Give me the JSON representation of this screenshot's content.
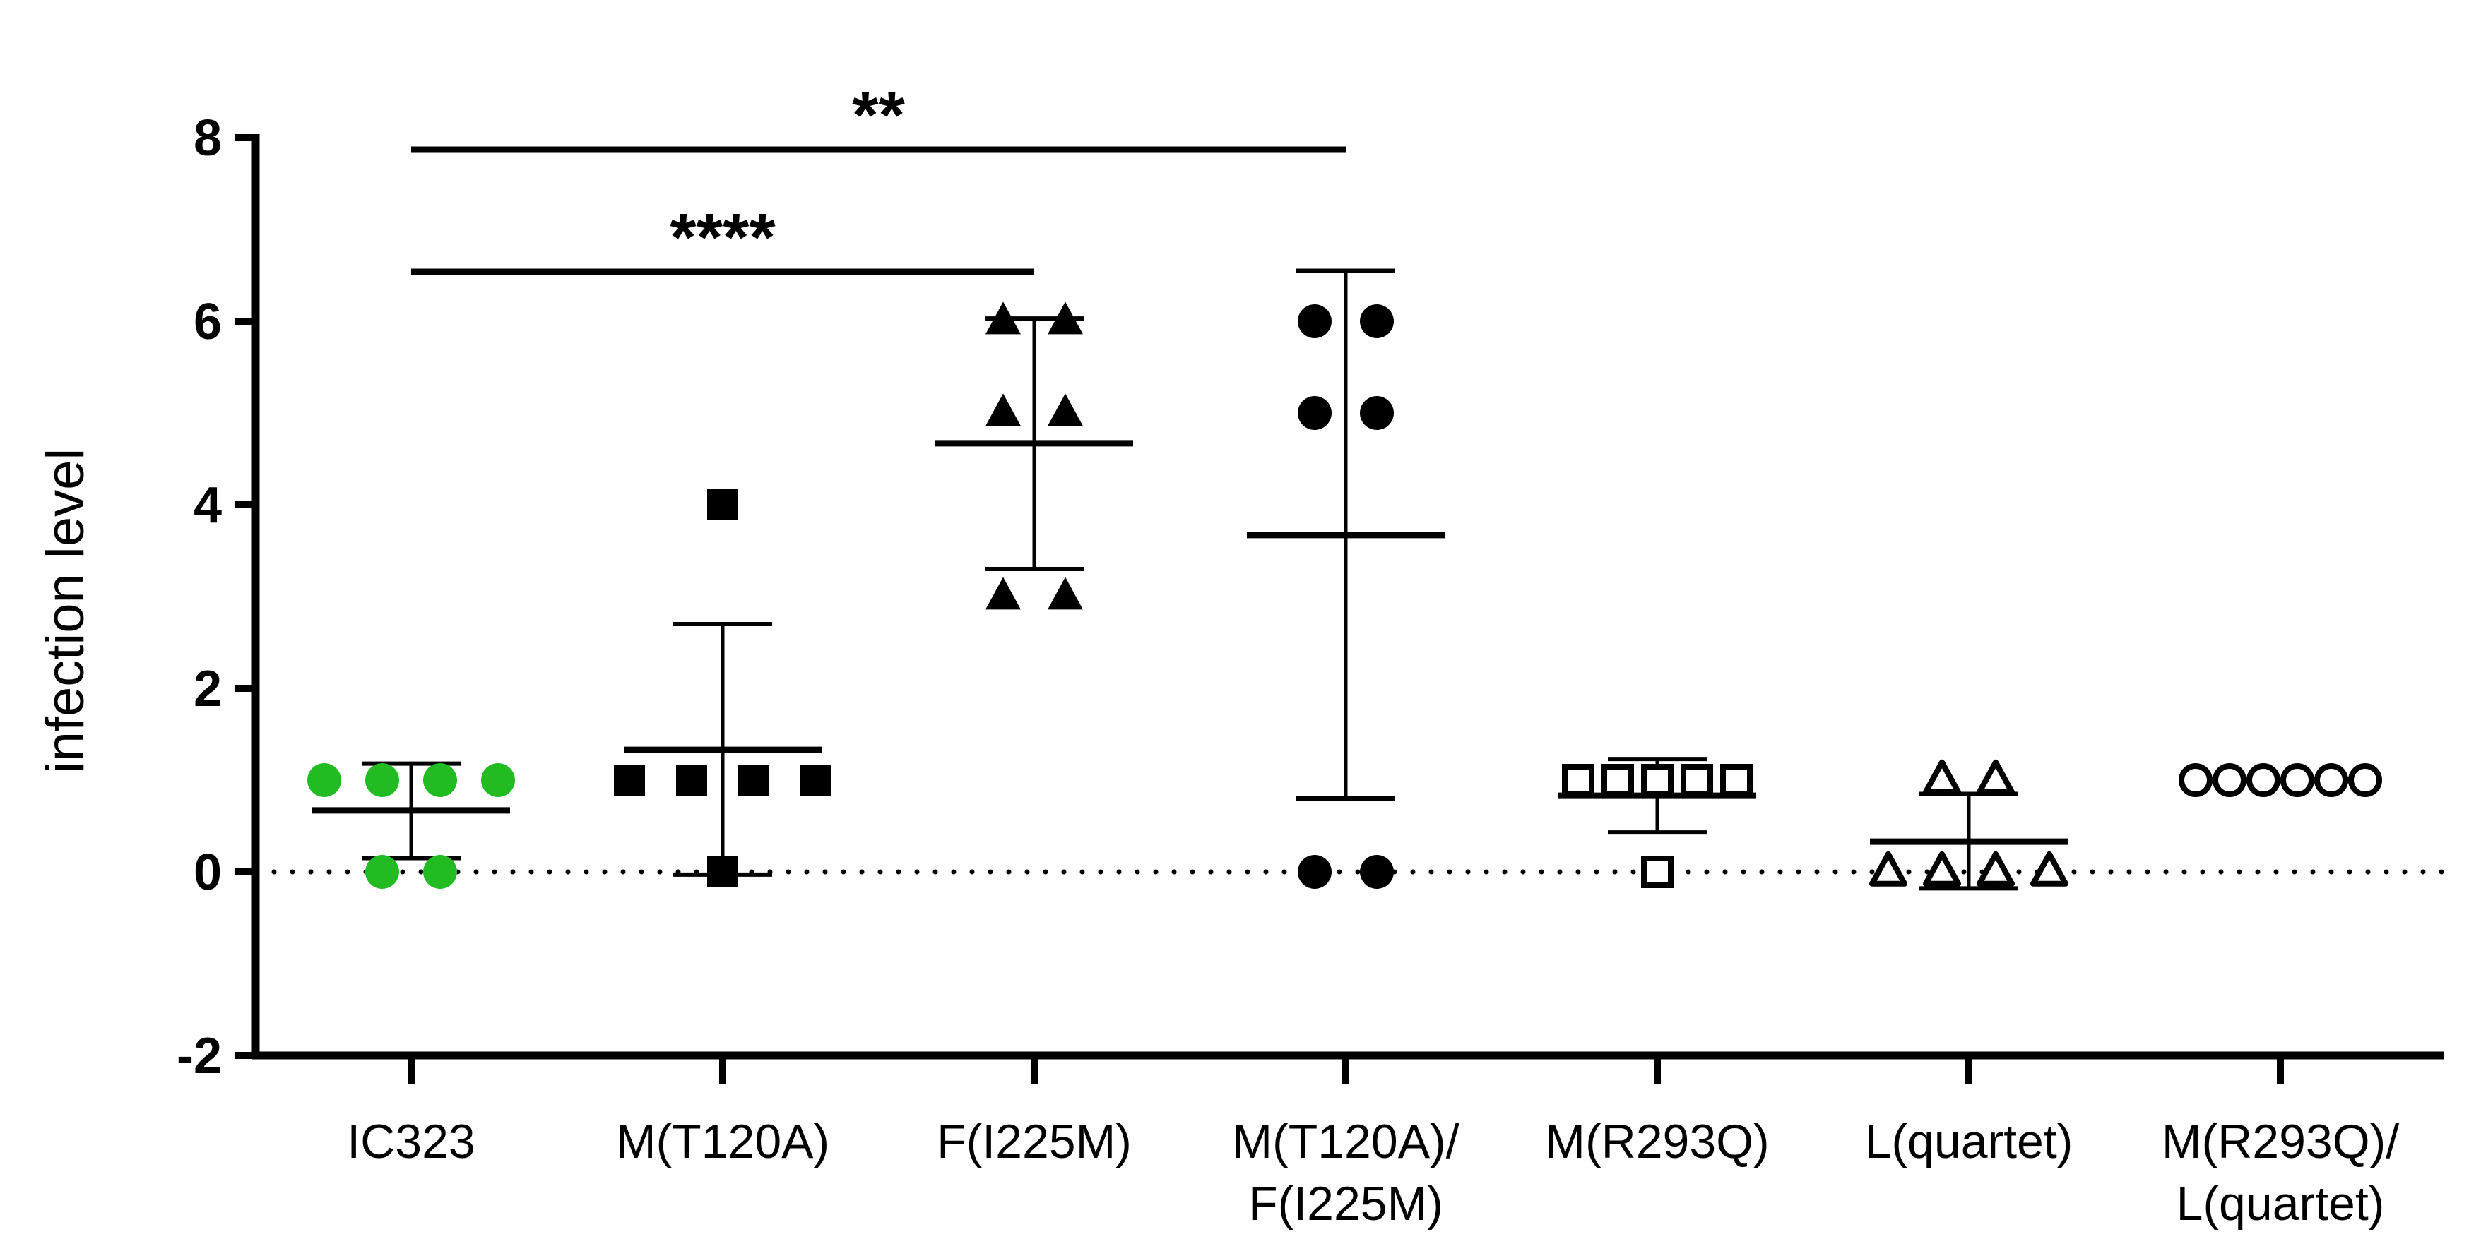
{
  "chart_data": {
    "type": "scatter",
    "title": "",
    "xlabel": "",
    "ylabel": "infection level",
    "ylim": [
      -2,
      8
    ],
    "yticks": [
      "-2",
      "0",
      "2",
      "4",
      "6",
      "8"
    ],
    "reference_line": {
      "y": 0,
      "style": "dotted"
    },
    "categories": [
      {
        "label_lines": [
          "IC323"
        ]
      },
      {
        "label_lines": [
          "M(T120A)"
        ]
      },
      {
        "label_lines": [
          "F(I225M)"
        ]
      },
      {
        "label_lines": [
          "M(T120A)/",
          "F(I225M)"
        ]
      },
      {
        "label_lines": [
          "M(R293Q)"
        ]
      },
      {
        "label_lines": [
          "L(quartet)"
        ]
      },
      {
        "label_lines": [
          "M(R293Q)/",
          "L(quartet)"
        ]
      }
    ],
    "series": [
      {
        "marker": "circle",
        "filled": true,
        "color": "#22bb22",
        "values": [
          1,
          1,
          1,
          1,
          0,
          0
        ],
        "mean": 0.67,
        "sd_low": 0.15,
        "sd_high": 1.18
      },
      {
        "marker": "square",
        "filled": true,
        "color": "#000000",
        "values": [
          4,
          1,
          1,
          1,
          1,
          0
        ],
        "mean": 1.33,
        "sd_low": -0.03,
        "sd_high": 2.7
      },
      {
        "marker": "triangle",
        "filled": true,
        "color": "#000000",
        "values": [
          6,
          6,
          5,
          5,
          3,
          3
        ],
        "mean": 4.67,
        "sd_low": 3.3,
        "sd_high": 6.03
      },
      {
        "marker": "circle",
        "filled": true,
        "color": "#000000",
        "values": [
          6,
          6,
          5,
          5,
          0,
          0
        ],
        "mean": 3.67,
        "sd_low": 0.8,
        "sd_high": 6.55
      },
      {
        "marker": "square",
        "filled": false,
        "color": "#000000",
        "values": [
          1,
          1,
          1,
          1,
          1,
          0
        ],
        "mean": 0.83,
        "sd_low": 0.43,
        "sd_high": 1.23
      },
      {
        "marker": "triangle",
        "filled": false,
        "color": "#000000",
        "values": [
          1,
          1,
          0,
          0,
          0,
          0
        ],
        "mean": 0.33,
        "sd_low": -0.18,
        "sd_high": 0.85
      },
      {
        "marker": "circle",
        "filled": false,
        "color": "#000000",
        "values": [
          1,
          1,
          1,
          1,
          1,
          1
        ],
        "mean": 1.0,
        "sd_low": 1.0,
        "sd_high": 1.0
      }
    ],
    "significance": [
      {
        "from": 0,
        "to": 3,
        "label": "**",
        "level": 1
      },
      {
        "from": 0,
        "to": 2,
        "label": "****",
        "level": 0
      }
    ]
  }
}
